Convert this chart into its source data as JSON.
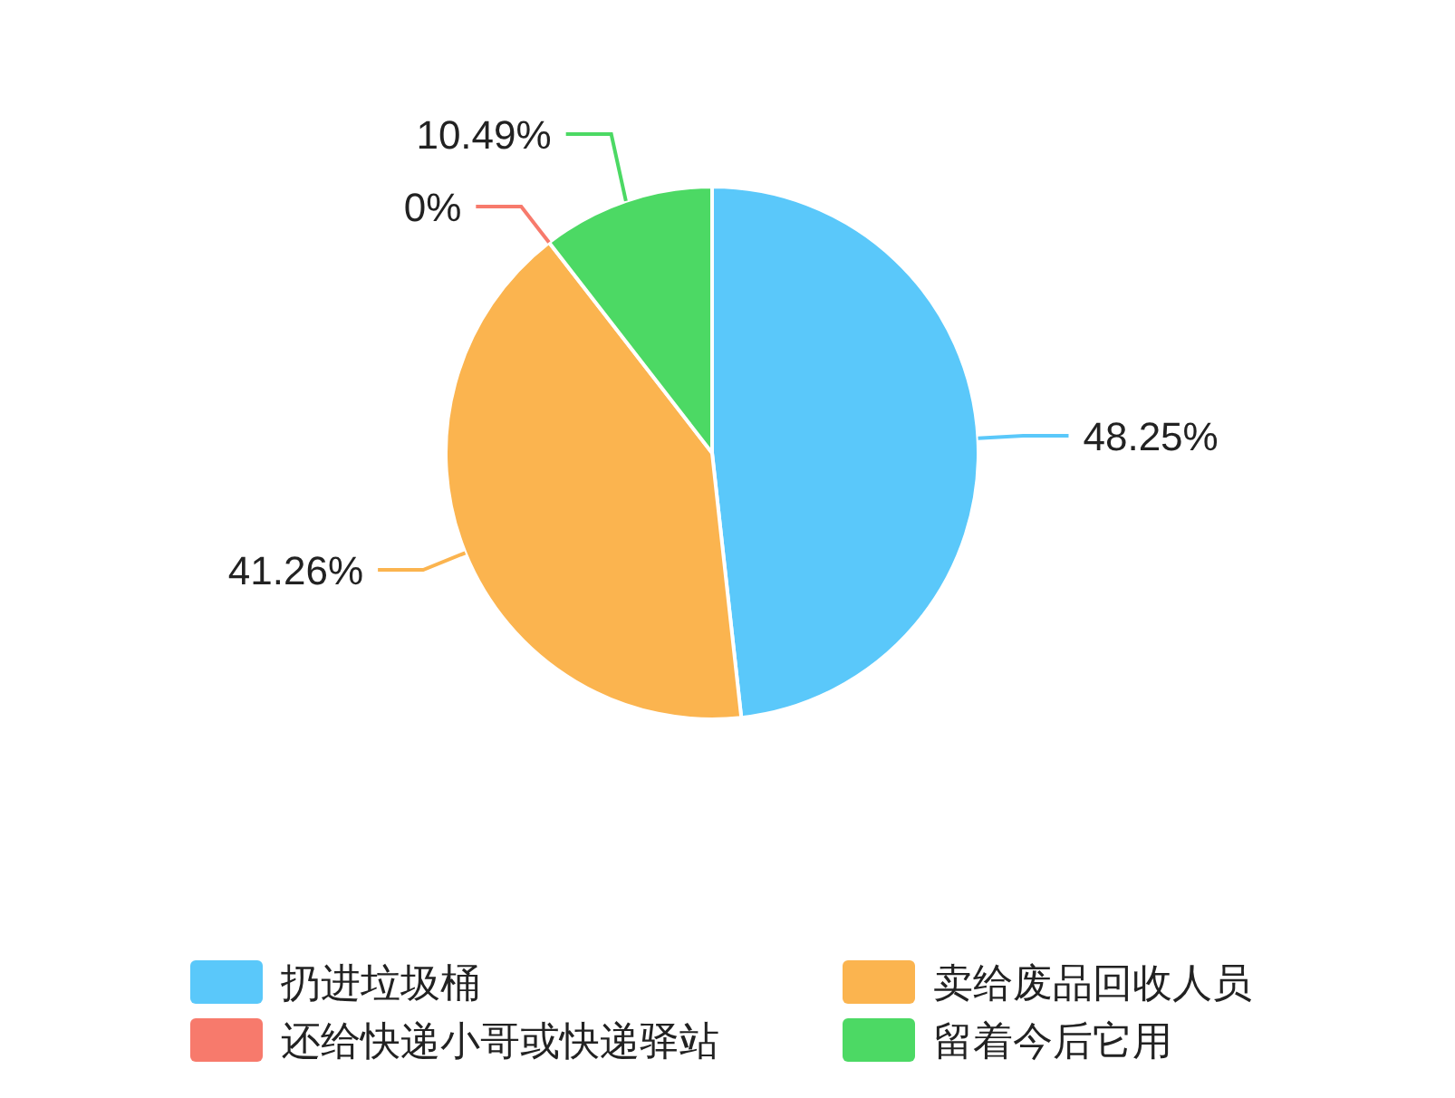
{
  "chart_data": {
    "type": "pie",
    "categories": [
      "扔进垃圾桶",
      "卖给废品回收人员",
      "还给快递小哥或快递驿站",
      "留着今后它用"
    ],
    "values": [
      48.25,
      41.26,
      0,
      10.49
    ],
    "colors": [
      "#5ac8fa",
      "#fbb44f",
      "#f77a6c",
      "#4cd964"
    ],
    "value_labels": [
      "48.25%",
      "41.26%",
      "0%",
      "10.49%"
    ],
    "legend": "bottom"
  }
}
